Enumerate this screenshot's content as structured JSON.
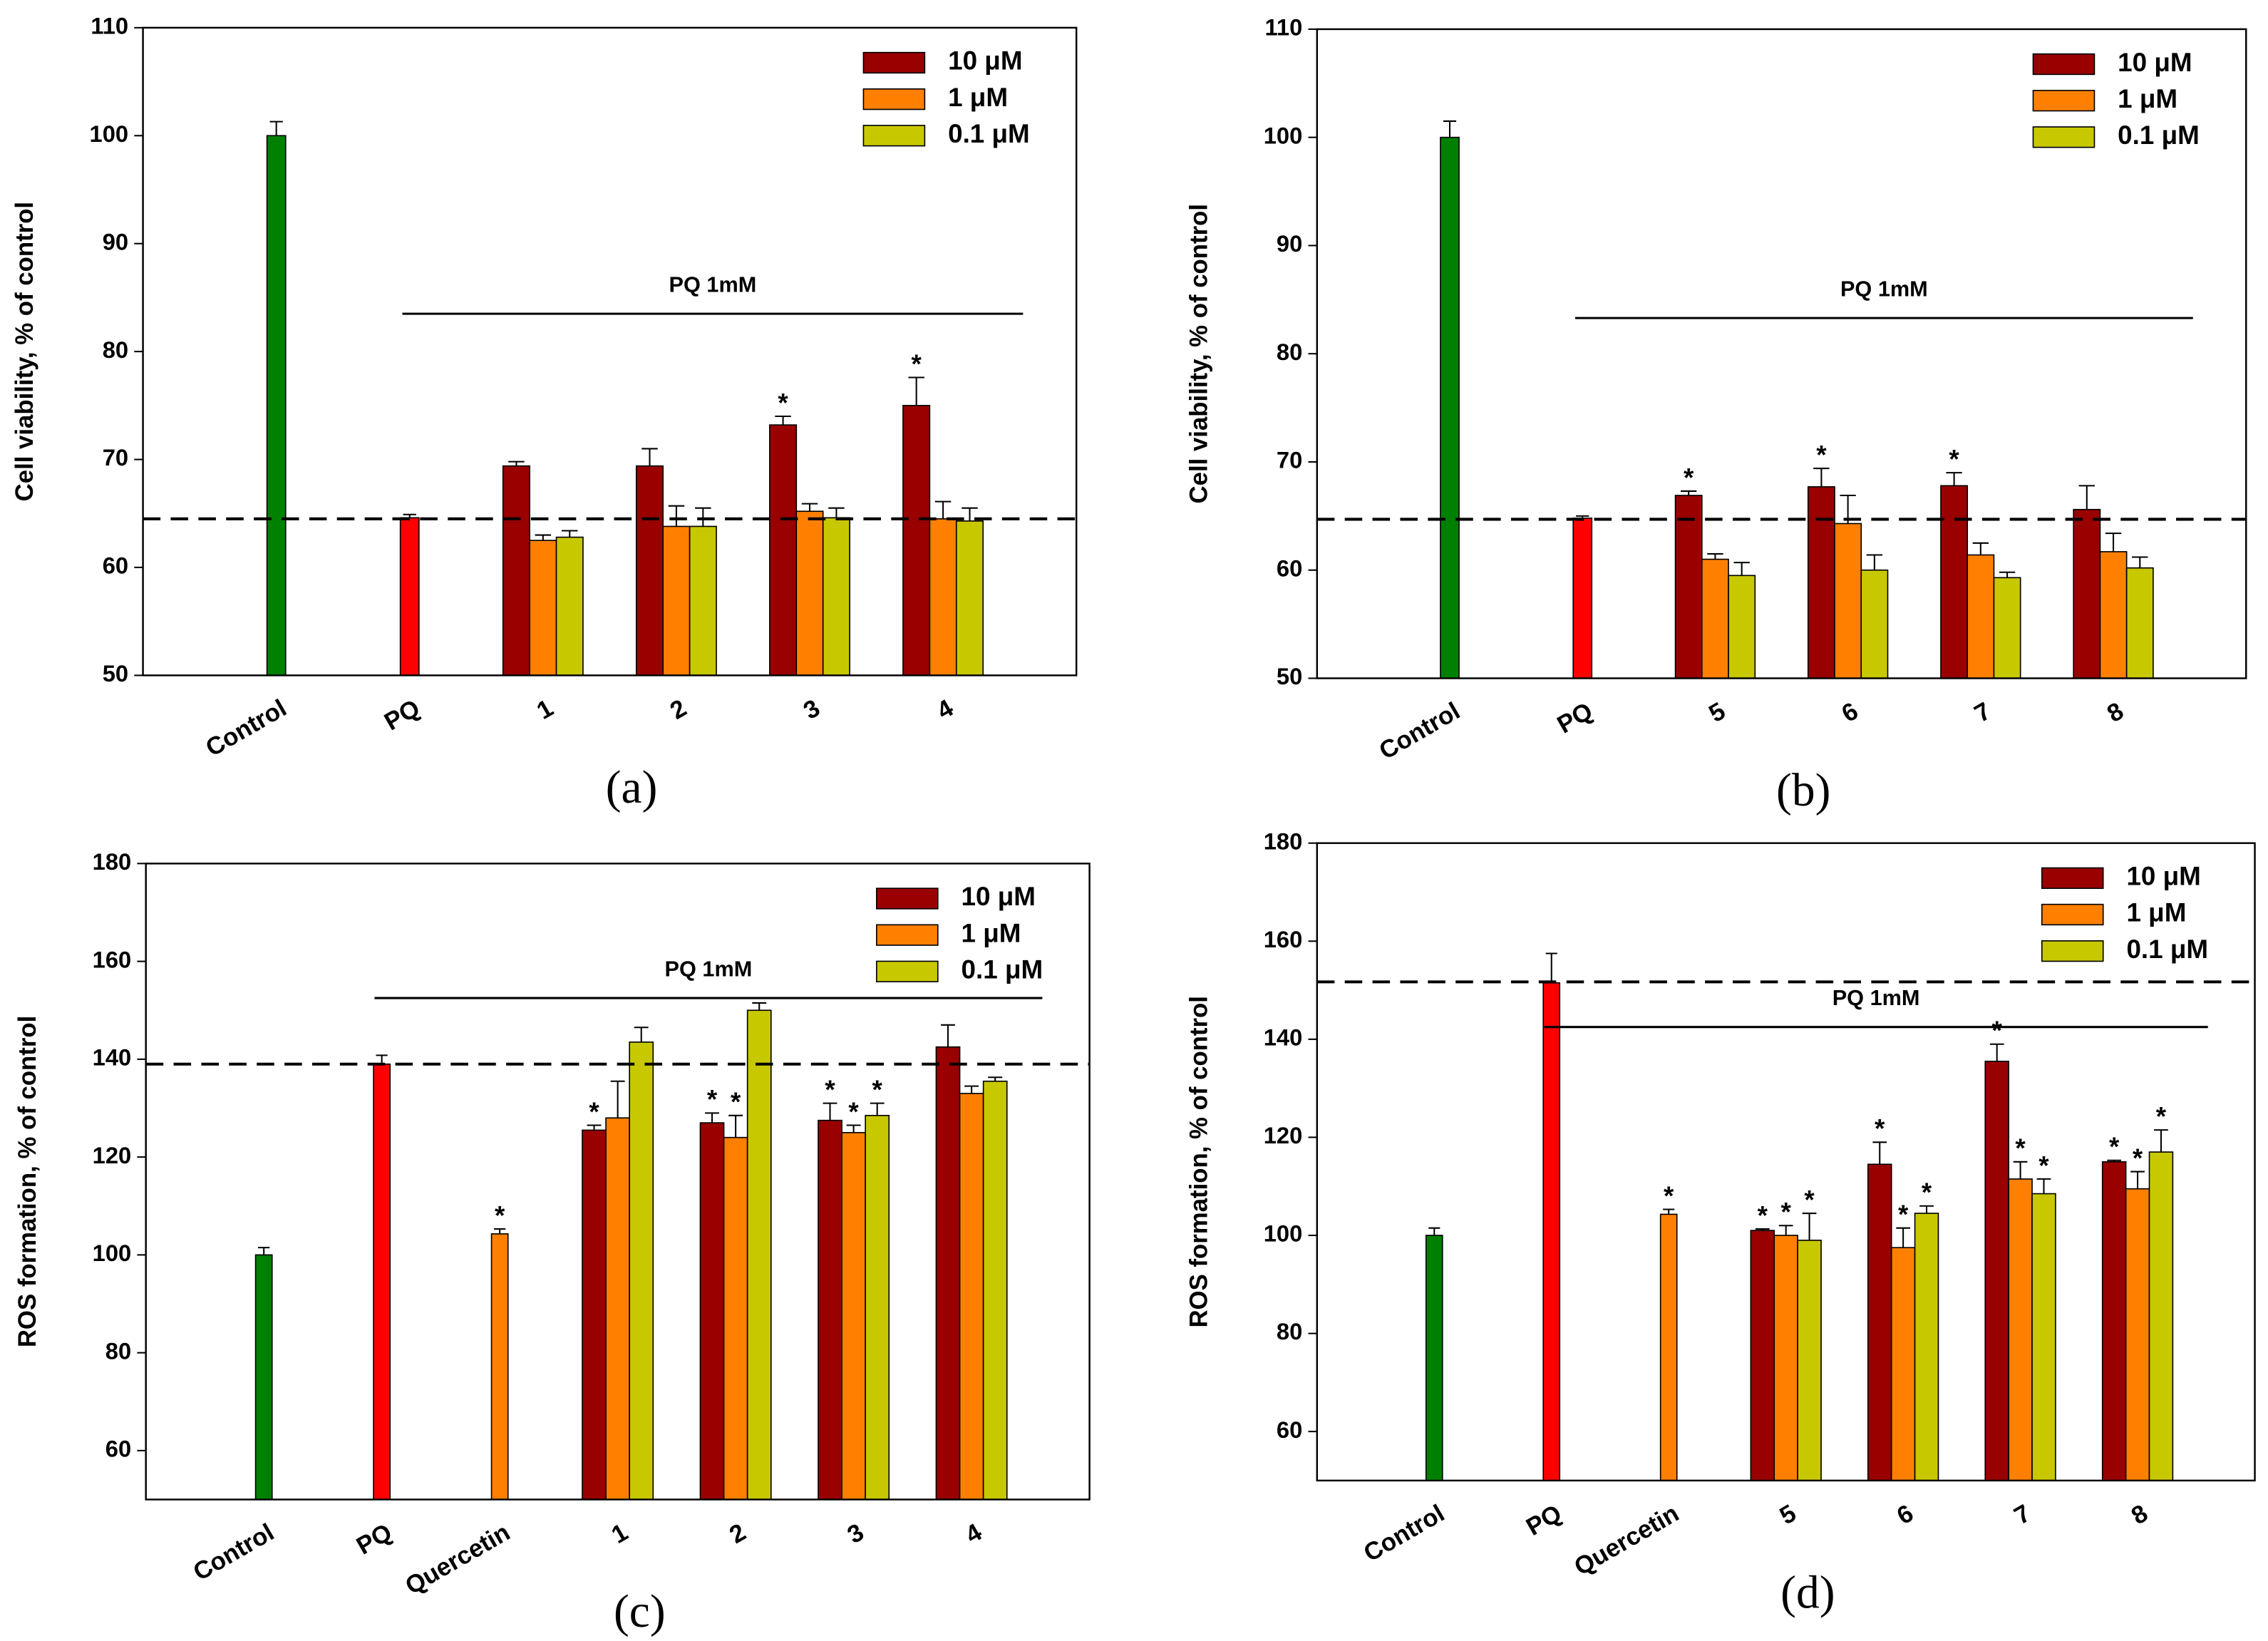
{
  "chart_data": [
    {
      "type": "bar",
      "caption": "(a)",
      "ylabel": "Cell viability, % of control",
      "categories": [
        "Control",
        "PQ",
        "1",
        "2",
        "3",
        "4"
      ],
      "ylim": [
        50,
        110
      ],
      "yticks": [
        50,
        60,
        70,
        80,
        90,
        100,
        110
      ],
      "legend": "upper right",
      "star": "*",
      "reference_line": 64.5,
      "reference_style": "dashed",
      "bracket": {
        "label": "PQ 1mM",
        "y": 83.5
      },
      "single": {
        "values": [
          100,
          64.6,
          null,
          null,
          null,
          null
        ],
        "errors": [
          1.3,
          0.3,
          null,
          null,
          null,
          null
        ],
        "colors": [
          "#008000",
          "#ff0000",
          null,
          null,
          null,
          null
        ],
        "significant": [
          false,
          false,
          false,
          false,
          false,
          false
        ]
      },
      "series": [
        {
          "name": "10 μM",
          "color": "#990000",
          "values": [
            null,
            null,
            69.4,
            69.4,
            73.2,
            75.0
          ],
          "errors": [
            null,
            null,
            0.4,
            1.6,
            0.8,
            2.6
          ],
          "significant": [
            false,
            false,
            false,
            false,
            true,
            true
          ]
        },
        {
          "name": "1 μM",
          "color": "#ff8000",
          "values": [
            null,
            null,
            62.5,
            63.8,
            65.2,
            64.5
          ],
          "errors": [
            null,
            null,
            0.5,
            1.9,
            0.7,
            1.6
          ],
          "significant": [
            false,
            false,
            false,
            false,
            false,
            false
          ]
        },
        {
          "name": "0.1 μM",
          "color": "#c8c800",
          "values": [
            null,
            null,
            62.8,
            63.8,
            64.6,
            64.3
          ],
          "errors": [
            null,
            null,
            0.6,
            1.7,
            0.9,
            1.2
          ],
          "significant": [
            false,
            false,
            false,
            false,
            false,
            false
          ]
        }
      ]
    },
    {
      "type": "bar",
      "caption": "(b)",
      "ylabel": "Cell viability, % of control",
      "categories": [
        "Control",
        "PQ",
        "5",
        "6",
        "7",
        "8"
      ],
      "ylim": [
        50,
        110
      ],
      "yticks": [
        50,
        60,
        70,
        80,
        90,
        100,
        110
      ],
      "legend": "upper right",
      "star": "*",
      "reference_line": 64.7,
      "reference_style": "dashed",
      "bracket": {
        "label": "PQ 1mM",
        "y": 83.3
      },
      "single": {
        "values": [
          100,
          64.8,
          null,
          null,
          null,
          null
        ],
        "errors": [
          1.5,
          0.2,
          null,
          null,
          null,
          null
        ],
        "colors": [
          "#008000",
          "#ff0000",
          null,
          null,
          null,
          null
        ],
        "significant": [
          false,
          false,
          false,
          false,
          false,
          false
        ]
      },
      "series": [
        {
          "name": "10 μM",
          "color": "#990000",
          "values": [
            null,
            null,
            66.9,
            67.7,
            67.8,
            65.6
          ],
          "errors": [
            null,
            null,
            0.4,
            1.7,
            1.2,
            2.2
          ],
          "significant": [
            false,
            false,
            true,
            true,
            true,
            false
          ]
        },
        {
          "name": "1 μM",
          "color": "#ff8000",
          "values": [
            null,
            null,
            61.0,
            64.3,
            61.4,
            61.7
          ],
          "errors": [
            null,
            null,
            0.5,
            2.6,
            1.1,
            1.7
          ],
          "significant": [
            false,
            false,
            false,
            false,
            false,
            false
          ]
        },
        {
          "name": "0.1 μM",
          "color": "#c8c800",
          "values": [
            null,
            null,
            59.5,
            60.0,
            59.3,
            60.2
          ],
          "errors": [
            null,
            null,
            1.2,
            1.4,
            0.5,
            1.0
          ],
          "significant": [
            false,
            false,
            false,
            false,
            false,
            false
          ]
        }
      ]
    },
    {
      "type": "bar",
      "caption": "(c)",
      "ylabel": "ROS formation, % of control",
      "categories": [
        "Control",
        "PQ",
        "Quercetin",
        "1",
        "2",
        "3",
        "4"
      ],
      "ylim": [
        50,
        180
      ],
      "yticks": [
        60,
        80,
        100,
        120,
        140,
        160,
        180
      ],
      "legend": "upper right",
      "star": "*",
      "reference_line": 139,
      "reference_style": "dashed",
      "bracket": {
        "label": "PQ 1mM",
        "y": 152.5
      },
      "single": {
        "values": [
          100,
          139,
          104.3,
          null,
          null,
          null,
          null
        ],
        "errors": [
          1.5,
          1.8,
          1,
          null,
          null,
          null,
          null
        ],
        "colors": [
          "#008000",
          "#ff0000",
          "#ff8000",
          null,
          null,
          null,
          null
        ],
        "significant": [
          false,
          false,
          true,
          false,
          false,
          false,
          false
        ]
      },
      "series": [
        {
          "name": "10 μM",
          "color": "#990000",
          "values": [
            null,
            null,
            null,
            125.5,
            127,
            127.5,
            142.5
          ],
          "errors": [
            null,
            null,
            null,
            1,
            2,
            3.5,
            4.5
          ],
          "significant": [
            false,
            false,
            false,
            true,
            true,
            true,
            false
          ]
        },
        {
          "name": "1 μM",
          "color": "#ff8000",
          "values": [
            null,
            null,
            null,
            128,
            124,
            125,
            133
          ],
          "errors": [
            null,
            null,
            null,
            7.5,
            4.5,
            1.5,
            1.5
          ],
          "significant": [
            false,
            false,
            false,
            false,
            true,
            true,
            false
          ]
        },
        {
          "name": "0.1 μM",
          "color": "#c8c800",
          "values": [
            null,
            null,
            null,
            143.5,
            150,
            128.5,
            135.5
          ],
          "errors": [
            null,
            null,
            null,
            3,
            1.5,
            2.5,
            0.8
          ],
          "significant": [
            false,
            false,
            false,
            false,
            false,
            true,
            false
          ]
        }
      ]
    },
    {
      "type": "bar",
      "caption": "(d)",
      "ylabel": "ROS formation, % of control",
      "categories": [
        "Control",
        "PQ",
        "Quercetin",
        "5",
        "6",
        "7",
        "8"
      ],
      "ylim": [
        50,
        180
      ],
      "yticks": [
        60,
        80,
        100,
        120,
        140,
        160,
        180
      ],
      "legend": "upper right",
      "star": "*",
      "reference_line": 151.7,
      "reference_style": "dashed",
      "bracket": {
        "label": "PQ 1mM",
        "y": 142.5
      },
      "single": {
        "values": [
          100,
          151.5,
          104.3,
          null,
          null,
          null,
          null
        ],
        "errors": [
          1.5,
          6,
          1,
          null,
          null,
          null,
          null
        ],
        "colors": [
          "#008000",
          "#ff0000",
          "#ff8000",
          null,
          null,
          null,
          null
        ],
        "significant": [
          false,
          false,
          true,
          false,
          false,
          false,
          false
        ]
      },
      "series": [
        {
          "name": "10 μM",
          "color": "#990000",
          "values": [
            null,
            null,
            null,
            101,
            114.5,
            135.5,
            115
          ],
          "errors": [
            null,
            null,
            null,
            0.3,
            4.5,
            3.5,
            0.3
          ],
          "significant": [
            false,
            false,
            false,
            true,
            true,
            true,
            true
          ]
        },
        {
          "name": "1 μM",
          "color": "#ff8000",
          "values": [
            null,
            null,
            null,
            100,
            97.5,
            111.5,
            109.5
          ],
          "errors": [
            null,
            null,
            null,
            2,
            4,
            3.5,
            3.5
          ],
          "significant": [
            false,
            false,
            false,
            true,
            true,
            true,
            true
          ]
        },
        {
          "name": "0.1 μM",
          "color": "#c8c800",
          "values": [
            null,
            null,
            null,
            99,
            104.5,
            108.5,
            117
          ],
          "errors": [
            null,
            null,
            null,
            5.5,
            1.5,
            3,
            4.5
          ],
          "significant": [
            false,
            false,
            false,
            true,
            true,
            true,
            true
          ]
        }
      ]
    }
  ]
}
